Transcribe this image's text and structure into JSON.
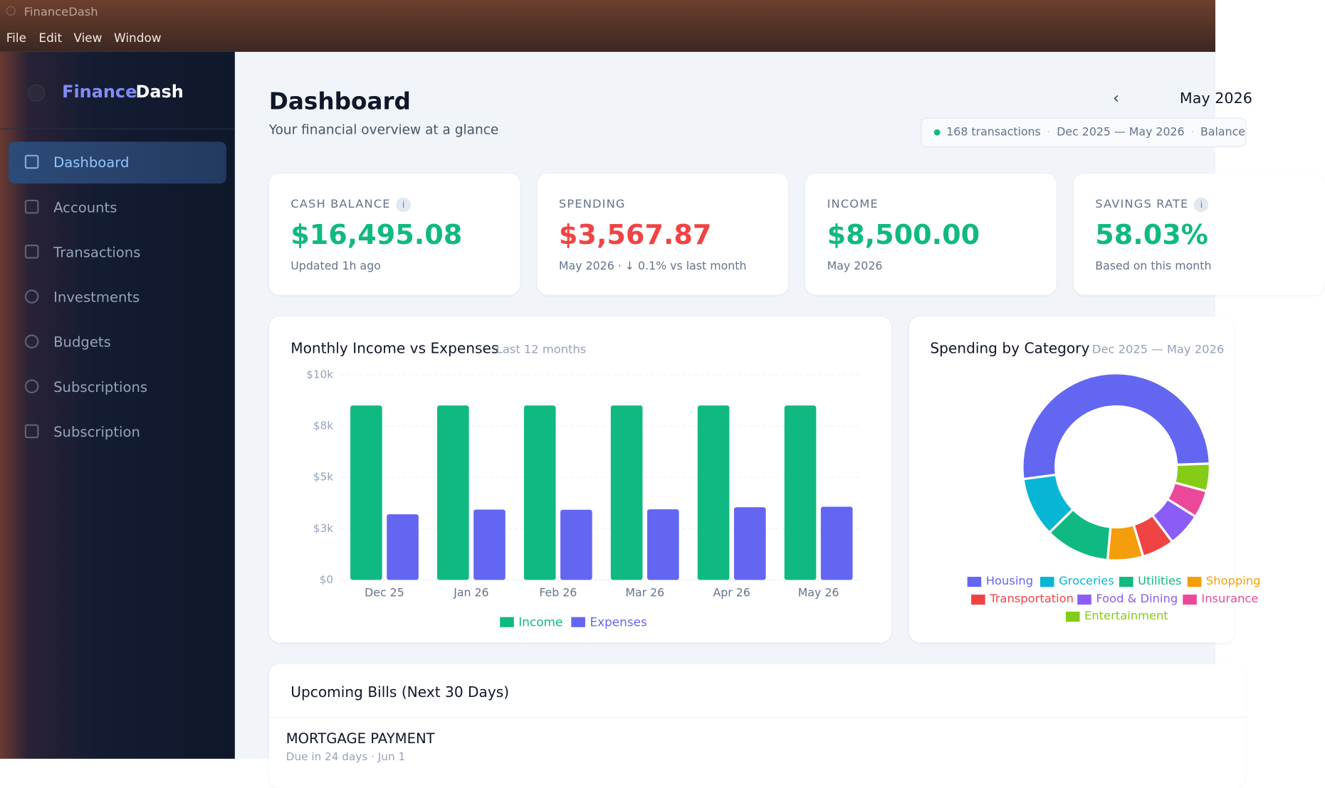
{
  "window": {
    "title": "FinanceDash",
    "menu": [
      "File",
      "Edit",
      "View",
      "Window"
    ]
  },
  "sidebar": {
    "brand": [
      "Finance",
      "Dash"
    ],
    "nav": [
      "Dashboard",
      "Accounts",
      "Transactions",
      "Investments",
      "Budgets",
      "Subscriptions",
      "Subscription"
    ]
  },
  "header": {
    "title": "Dashboard",
    "subtitle": "Your financial overview at a glance",
    "prev": "‹",
    "month": "May 2026",
    "status": [
      "168 transactions",
      "Dec 2025 — May 2026",
      "Balance"
    ]
  },
  "cards": [
    {
      "label": "CASH BALANCE",
      "info": "i",
      "value": "$16,495.08",
      "note": "Updated 1h ago"
    },
    {
      "label": "SPENDING",
      "value": "$3,567.87",
      "note": "May 2026 · ↓ 0.1% vs last month"
    },
    {
      "label": "INCOME",
      "value": "$8,500.00",
      "note": "May 2026"
    },
    {
      "label": "SAVINGS RATE",
      "info": "i",
      "value": "58.03%",
      "note": "Based on this month"
    }
  ],
  "chart_data": [
    {
      "type": "bar",
      "title": "Monthly Income vs Expenses",
      "subtitle": "Last 12 months",
      "categories": [
        "Dec 25",
        "Jan 26",
        "Feb 26",
        "Mar 26",
        "Apr 26",
        "May 26"
      ],
      "series": [
        {
          "name": "Income",
          "color": "#10b981",
          "values": [
            8500,
            8500,
            8500,
            8500,
            8500,
            8500
          ]
        },
        {
          "name": "Expenses",
          "color": "#6366f1",
          "values": [
            3200,
            3430,
            3420,
            3440,
            3540,
            3568
          ]
        }
      ],
      "ylim": [
        0,
        10000
      ],
      "yticks": [
        {
          "value": 0,
          "label": "$0"
        },
        {
          "value": 2500,
          "label": "$3k"
        },
        {
          "value": 5000,
          "label": "$5k"
        },
        {
          "value": 7500,
          "label": "$8k"
        },
        {
          "value": 10000,
          "label": "$10k"
        }
      ],
      "grid": true
    },
    {
      "type": "pie",
      "title": "Spending by Category",
      "subtitle": "Dec 2025 — May 2026",
      "categories": [
        "Housing",
        "Groceries",
        "Utilities",
        "Shopping",
        "Transportation",
        "Food & Dining",
        "Insurance",
        "Entertainment"
      ],
      "values": [
        1850,
        370,
        400,
        220,
        200,
        210,
        170,
        170
      ],
      "colors": [
        "#6366f1",
        "#06b6d4",
        "#10b981",
        "#f59e0b",
        "#ef4444",
        "#8b5cf6",
        "#ec4899",
        "#84cc16"
      ]
    }
  ],
  "bills": {
    "title": "Upcoming Bills (Next 30 Days)",
    "items": [
      {
        "name": "MORTGAGE PAYMENT",
        "due": "Due in 24 days · Jun 1"
      }
    ]
  }
}
